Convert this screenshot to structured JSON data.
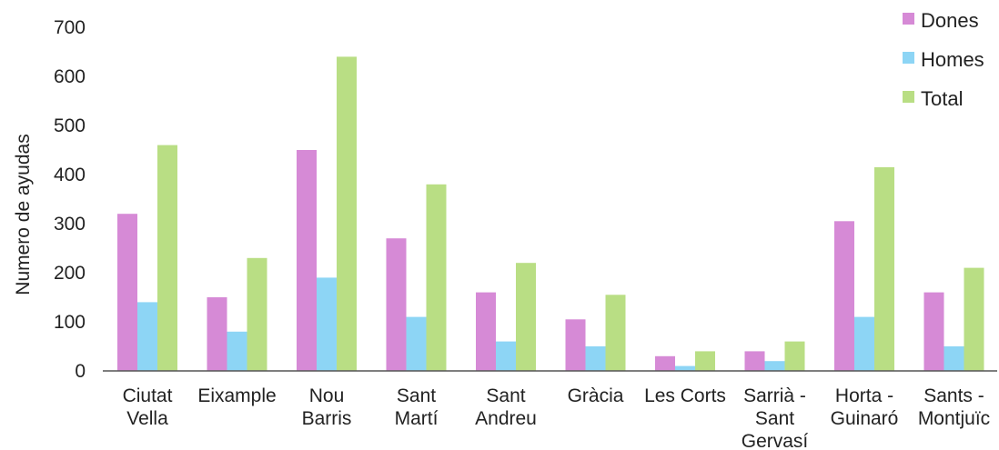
{
  "chart_data": {
    "type": "bar",
    "title": "",
    "xlabel": "",
    "ylabel": "Numero de ayudas",
    "ylim": [
      0,
      700
    ],
    "yticks": [
      0,
      100,
      200,
      300,
      400,
      500,
      600,
      700
    ],
    "grid": false,
    "legend_position": "top-right",
    "categories": [
      [
        "Ciutat",
        "Vella"
      ],
      [
        "Eixample"
      ],
      [
        "Nou",
        "Barris"
      ],
      [
        "Sant",
        "Martí"
      ],
      [
        "Sant",
        "Andreu"
      ],
      [
        "Gràcia"
      ],
      [
        "Les Corts"
      ],
      [
        "Sarrià -",
        "Sant",
        "Gervasí"
      ],
      [
        "Horta -",
        "Guinaró"
      ],
      [
        "Sants -",
        "Montjuïc"
      ]
    ],
    "series": [
      {
        "name": "Dones",
        "color": "#d68ad6",
        "values": [
          320,
          150,
          450,
          270,
          160,
          105,
          30,
          40,
          305,
          160
        ]
      },
      {
        "name": "Homes",
        "color": "#8dd5f5",
        "values": [
          140,
          80,
          190,
          110,
          60,
          50,
          10,
          20,
          110,
          50
        ]
      },
      {
        "name": "Total",
        "color": "#b9de84",
        "values": [
          460,
          230,
          640,
          380,
          220,
          155,
          40,
          60,
          415,
          210
        ]
      }
    ]
  }
}
